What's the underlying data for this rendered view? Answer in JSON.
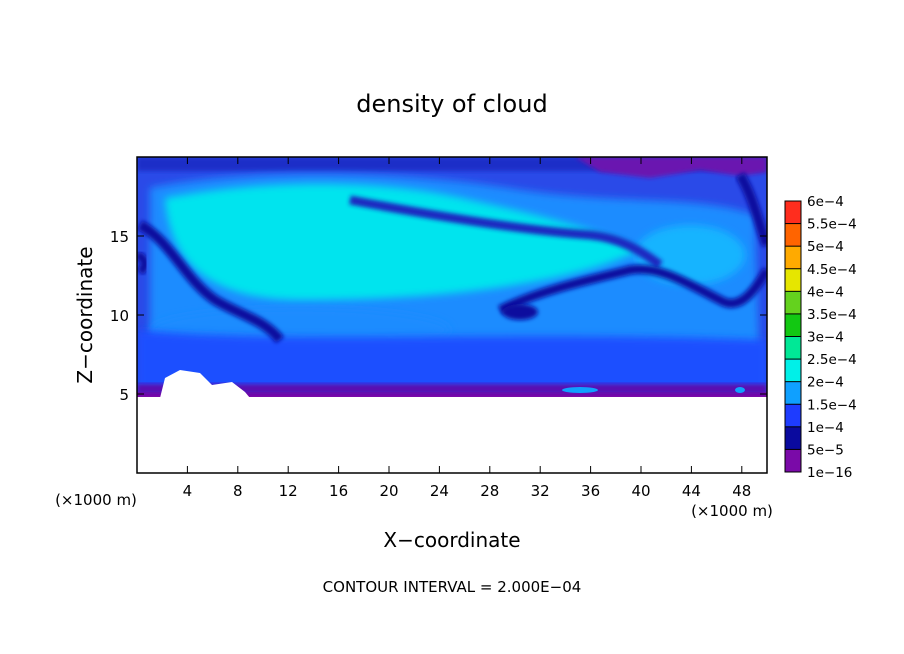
{
  "chart_data": {
    "type": "heatmap",
    "title": "density of cloud",
    "xlabel": "X−coordinate",
    "ylabel": "Z−coordinate",
    "x_unit_left": "(×1000 m)",
    "x_unit_right": "(×1000 m)",
    "footer": "CONTOUR INTERVAL = 2.000E−04",
    "xlim": [
      0,
      50
    ],
    "ylim": [
      0,
      20
    ],
    "x_ticks": [
      4,
      8,
      12,
      16,
      20,
      24,
      28,
      32,
      36,
      40,
      44,
      48
    ],
    "y_ticks": [
      5,
      10,
      15
    ],
    "cloud_base": 5,
    "legend": {
      "placement": "right",
      "levels": [
        {
          "label": "1e−16",
          "color": "#7a0aa8"
        },
        {
          "label": "5e−5",
          "color": "#0a0a9e"
        },
        {
          "label": "1e−4",
          "color": "#1e3cff"
        },
        {
          "label": "1.5e−4",
          "color": "#0fa0ff"
        },
        {
          "label": "2e−4",
          "color": "#00f0e8"
        },
        {
          "label": "2.5e−4",
          "color": "#00e896"
        },
        {
          "label": "3e−4",
          "color": "#12c812"
        },
        {
          "label": "3.5e−4",
          "color": "#64d21e"
        },
        {
          "label": "4e−4",
          "color": "#e6e600"
        },
        {
          "label": "4.5e−4",
          "color": "#ffaa00"
        },
        {
          "label": "5e−4",
          "color": "#ff6400"
        },
        {
          "label": "5.5e−4",
          "color": "#ff2d1e"
        },
        {
          "label": "6e−4",
          "color": "#ff8c8c"
        }
      ]
    }
  }
}
